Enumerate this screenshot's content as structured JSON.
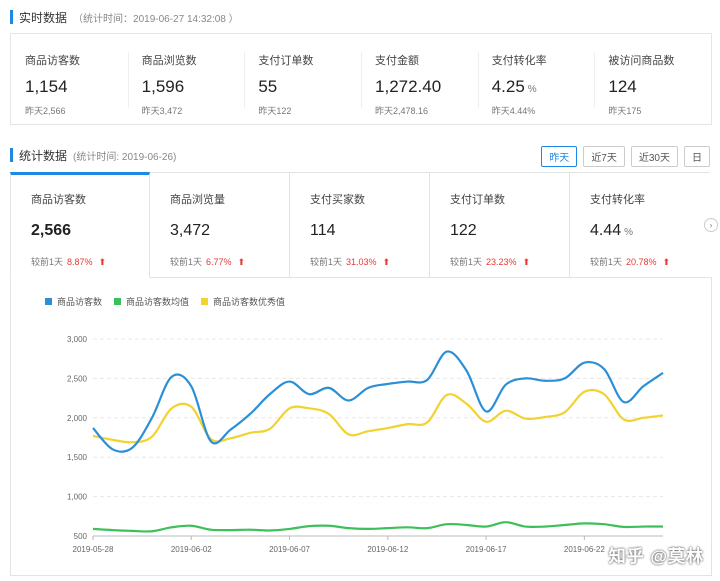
{
  "realtime": {
    "title": "实时数据",
    "subtitle": "（统计时间：2019-06-27 14:32:08 ）",
    "metrics": [
      {
        "label": "商品访客数",
        "value": "1,154",
        "unit": "",
        "prev": "昨天2,566"
      },
      {
        "label": "商品浏览数",
        "value": "1,596",
        "unit": "",
        "prev": "昨天3,472"
      },
      {
        "label": "支付订单数",
        "value": "55",
        "unit": "",
        "prev": "昨天122"
      },
      {
        "label": "支付金额",
        "value": "1,272.40",
        "unit": "",
        "prev": "昨天2,478.16"
      },
      {
        "label": "支付转化率",
        "value": "4.25",
        "unit": "%",
        "prev": "昨天4.44%"
      },
      {
        "label": "被访问商品数",
        "value": "124",
        "unit": "",
        "prev": "昨天175"
      }
    ]
  },
  "stats": {
    "title": "统计数据",
    "subtitle": "(统计时间: 2019-06-26)",
    "range_buttons": [
      "昨天",
      "近7天",
      "近30天",
      "日"
    ],
    "active_range": "昨天",
    "kpis": [
      {
        "label": "商品访客数",
        "value": "2,566",
        "unit": "",
        "cmp_label": "较前1天",
        "change": "8.87%"
      },
      {
        "label": "商品浏览量",
        "value": "3,472",
        "unit": "",
        "cmp_label": "较前1天",
        "change": "6.77%"
      },
      {
        "label": "支付买家数",
        "value": "114",
        "unit": "",
        "cmp_label": "较前1天",
        "change": "31.03%"
      },
      {
        "label": "支付订单数",
        "value": "122",
        "unit": "",
        "cmp_label": "较前1天",
        "change": "23.23%"
      },
      {
        "label": "支付转化率",
        "value": "4.44",
        "unit": "%",
        "cmp_label": "较前1天",
        "change": "20.78%"
      }
    ],
    "up_arrow": "⬆",
    "next_icon": "›"
  },
  "chart_data": {
    "type": "line",
    "x": [
      "2019-05-28",
      "2019-05-29",
      "2019-05-30",
      "2019-05-31",
      "2019-06-01",
      "2019-06-02",
      "2019-06-03",
      "2019-06-04",
      "2019-06-05",
      "2019-06-06",
      "2019-06-07",
      "2019-06-08",
      "2019-06-09",
      "2019-06-10",
      "2019-06-11",
      "2019-06-12",
      "2019-06-13",
      "2019-06-14",
      "2019-06-15",
      "2019-06-16",
      "2019-06-17",
      "2019-06-18",
      "2019-06-19",
      "2019-06-20",
      "2019-06-21",
      "2019-06-22",
      "2019-06-23",
      "2019-06-24",
      "2019-06-25",
      "2019-06-26"
    ],
    "xticks": [
      "2019-05-28",
      "2019-06-02",
      "2019-06-07",
      "2019-06-12",
      "2019-06-17",
      "2019-06-22"
    ],
    "ylim": [
      500,
      3000
    ],
    "yticks": [
      "500",
      "1,000",
      "1,500",
      "2,000",
      "2,500",
      "3,000"
    ],
    "grid": true,
    "legend_position": "top-left",
    "series": [
      {
        "name": "商品访客数",
        "color": "#2b8fd8",
        "values": [
          1870,
          1600,
          1620,
          2000,
          2520,
          2400,
          1700,
          1850,
          2050,
          2300,
          2460,
          2300,
          2380,
          2220,
          2380,
          2430,
          2460,
          2480,
          2840,
          2600,
          2080,
          2420,
          2500,
          2470,
          2500,
          2700,
          2620,
          2200,
          2400,
          2570
        ]
      },
      {
        "name": "商品访客数均值",
        "color": "#3dbf5a",
        "values": [
          590,
          575,
          565,
          560,
          610,
          630,
          580,
          575,
          580,
          570,
          590,
          625,
          630,
          600,
          590,
          600,
          610,
          600,
          650,
          640,
          620,
          675,
          620,
          620,
          640,
          660,
          650,
          615,
          620,
          620
        ]
      },
      {
        "name": "商品访客数优秀值",
        "color": "#f2d22e",
        "values": [
          1770,
          1720,
          1690,
          1760,
          2120,
          2140,
          1730,
          1740,
          1810,
          1860,
          2120,
          2120,
          2050,
          1790,
          1830,
          1870,
          1920,
          1940,
          2290,
          2180,
          1950,
          2090,
          1990,
          2010,
          2070,
          2330,
          2300,
          1980,
          2000,
          2030
        ]
      }
    ]
  },
  "watermark": "知乎 @莫林"
}
